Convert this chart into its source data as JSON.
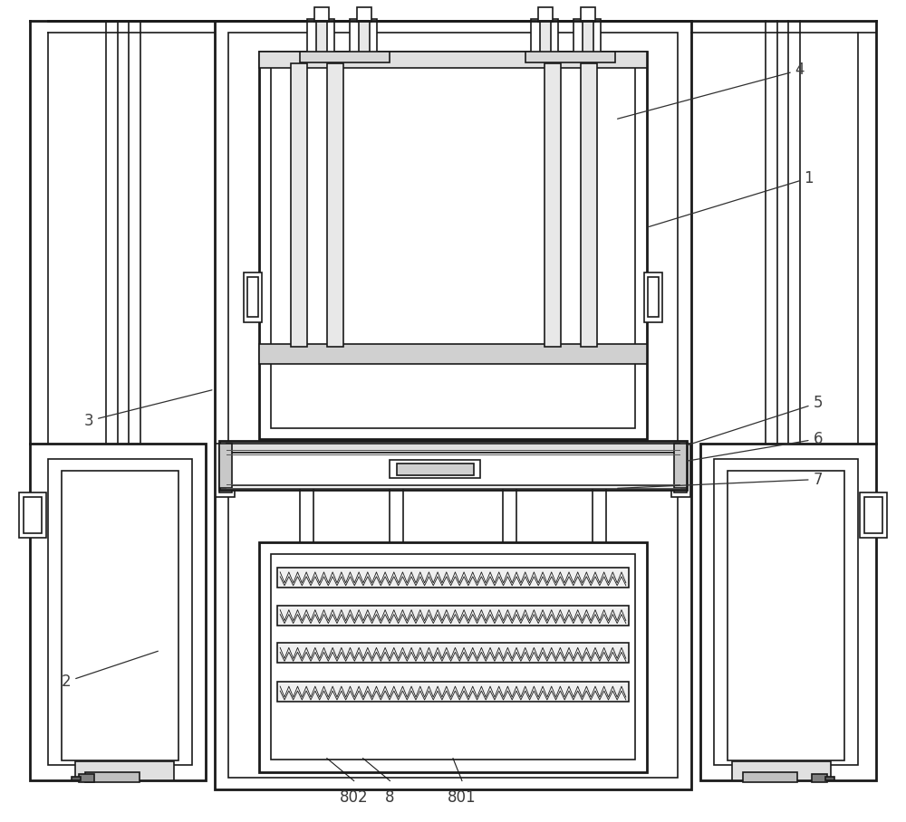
{
  "bg_color": "#ffffff",
  "lc": "#1a1a1a",
  "lw": 1.2,
  "tlw": 2.0,
  "fig_w": 10.0,
  "fig_h": 9.08
}
